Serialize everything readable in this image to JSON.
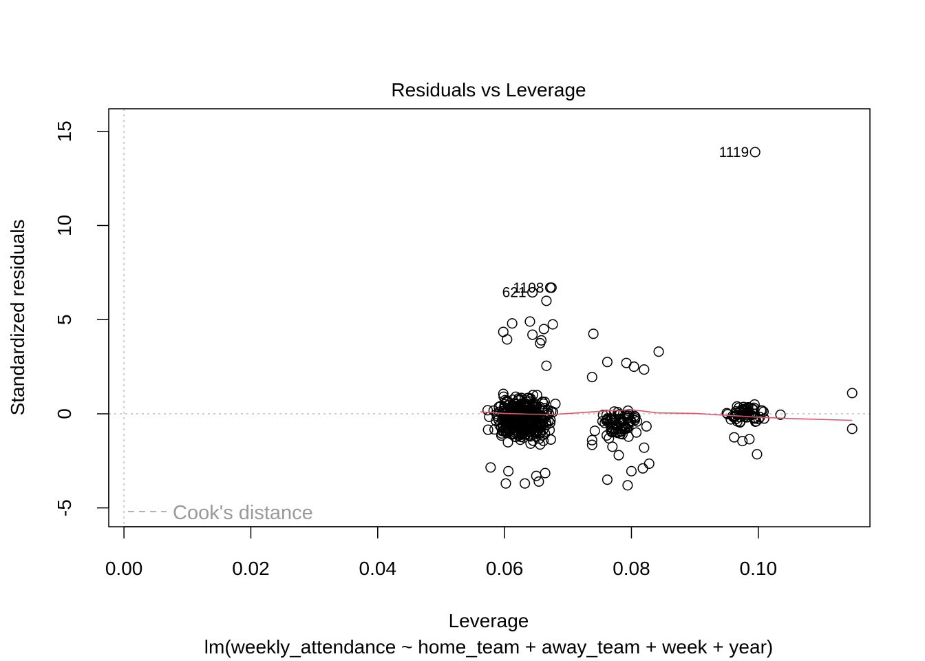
{
  "chart_data": {
    "type": "scatter",
    "title": "Residuals vs Leverage",
    "xlabel": "Leverage",
    "sublabel": "lm(weekly_attendance ~ home_team + away_team + week + year)",
    "ylabel": "Standardized residuals",
    "xlim": [
      -0.0024,
      0.1176
    ],
    "ylim": [
      -6.0,
      16.2
    ],
    "x_ticks": [
      0.0,
      0.02,
      0.04,
      0.06,
      0.08,
      0.1
    ],
    "x_tick_labels": [
      "0.00",
      "0.02",
      "0.04",
      "0.06",
      "0.08",
      "0.10"
    ],
    "y_ticks": [
      -5,
      0,
      5,
      10,
      15
    ],
    "y_tick_labels": [
      "-5",
      "0",
      "5",
      "10",
      "15"
    ],
    "grid": false,
    "reference_lines": {
      "h": 0,
      "v": 0,
      "style": "dotted",
      "color": "#bebebe"
    },
    "smooth_line": {
      "color": "#df536b",
      "x": [
        0.0562,
        0.06,
        0.064,
        0.068,
        0.072,
        0.076,
        0.08,
        0.084,
        0.09,
        0.095,
        0.1,
        0.105,
        0.1148
      ],
      "y": [
        0.1,
        0.02,
        -0.02,
        -0.03,
        0.06,
        0.15,
        0.22,
        0.05,
        0.02,
        -0.08,
        -0.18,
        -0.25,
        -0.35
      ]
    },
    "legend": {
      "position": "bottom-left",
      "entries": [
        "Cook's distance"
      ],
      "line_style": "dashed",
      "color": "#999999"
    },
    "labeled_points": [
      {
        "label": "1119",
        "x": 0.0995,
        "y": 13.9
      },
      {
        "label": "1108",
        "x": 0.0672,
        "y": 6.7
      },
      {
        "label": "621",
        "x": 0.0644,
        "y": 6.45
      }
    ],
    "outlier_points": [
      [
        0.0674,
        6.7
      ],
      [
        0.0644,
        6.45
      ],
      [
        0.0666,
        6.0
      ],
      [
        0.0612,
        4.8
      ],
      [
        0.064,
        4.9
      ],
      [
        0.0676,
        4.75
      ],
      [
        0.0598,
        4.35
      ],
      [
        0.0662,
        4.5
      ],
      [
        0.0644,
        4.2
      ],
      [
        0.0658,
        3.9
      ],
      [
        0.0604,
        3.95
      ],
      [
        0.0656,
        3.75
      ],
      [
        0.074,
        4.25
      ],
      [
        0.0843,
        3.3
      ],
      [
        0.0666,
        2.55
      ],
      [
        0.0762,
        2.75
      ],
      [
        0.0792,
        2.7
      ],
      [
        0.082,
        2.35
      ],
      [
        0.0804,
        2.5
      ],
      [
        0.0738,
        1.95
      ],
      [
        0.1148,
        1.1
      ],
      [
        0.1148,
        -0.8
      ],
      [
        0.1035,
        -0.05
      ],
      [
        0.0998,
        -2.15
      ],
      [
        0.0762,
        -3.5
      ],
      [
        0.0794,
        -3.8
      ],
      [
        0.0602,
        -3.7
      ],
      [
        0.0654,
        -3.6
      ],
      [
        0.0632,
        -3.7
      ],
      [
        0.065,
        -3.3
      ],
      [
        0.0664,
        -3.15
      ],
      [
        0.0578,
        -2.85
      ],
      [
        0.0606,
        -3.05
      ],
      [
        0.08,
        -3.05
      ],
      [
        0.0818,
        -2.9
      ],
      [
        0.0828,
        -2.65
      ],
      [
        0.078,
        -2.2
      ],
      [
        0.0738,
        -1.4
      ],
      [
        0.0738,
        -1.65
      ],
      [
        0.077,
        -1.75
      ],
      [
        0.082,
        -1.8
      ],
      [
        0.0962,
        -1.25
      ],
      [
        0.0986,
        -1.35
      ],
      [
        0.0975,
        -1.45
      ]
    ],
    "clusters": [
      {
        "x_range": [
          0.0562,
          0.0695
        ],
        "y_range": [
          -2.6,
          2.0
        ],
        "n": 360
      },
      {
        "x_range": [
          0.0728,
          0.0835
        ],
        "y_range": [
          -2.0,
          1.0
        ],
        "n": 70
      },
      {
        "x_range": [
          0.0942,
          0.102
        ],
        "y_range": [
          -1.1,
          1.1
        ],
        "n": 60
      }
    ]
  }
}
